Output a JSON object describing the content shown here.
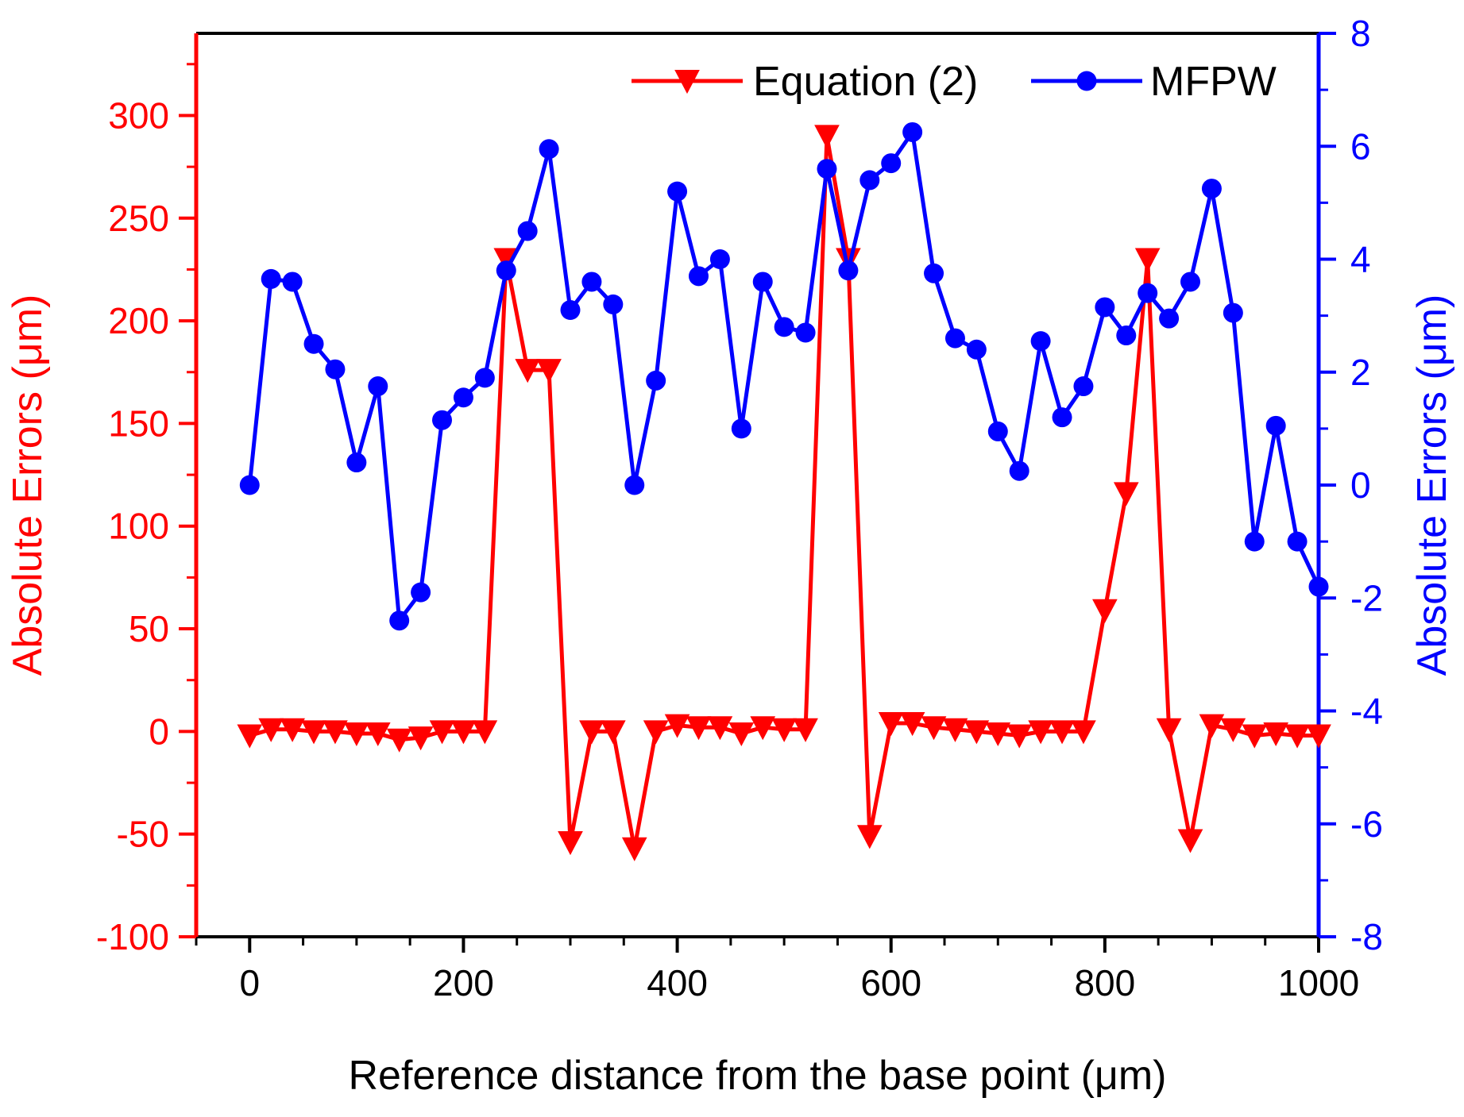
{
  "chart_data": {
    "type": "line",
    "title": "",
    "xlabel": "Reference distance from the base point (μm)",
    "ylabel_left": "Absolute Errors (μm)",
    "ylabel_right": "Absolute Errors (μm)",
    "xlim": [
      -50,
      1000
    ],
    "ylim_left": [
      -100,
      340
    ],
    "ylim_right": [
      -8,
      8
    ],
    "x_ticks": [
      0,
      200,
      400,
      600,
      800,
      1000
    ],
    "x_tick_labels": [
      "0",
      "200",
      "400",
      "600",
      "800",
      "1000"
    ],
    "y_left_ticks": [
      -100,
      -50,
      0,
      50,
      100,
      150,
      200,
      250,
      300
    ],
    "y_left_tick_labels": [
      "-100",
      "-50",
      "0",
      "50",
      "100",
      "150",
      "200",
      "250",
      "300"
    ],
    "y_right_ticks": [
      -8,
      -6,
      -4,
      -2,
      0,
      2,
      4,
      6,
      8
    ],
    "y_right_tick_labels": [
      "-8",
      "-6",
      "-4",
      "-2",
      "0",
      "2",
      "4",
      "6",
      "8"
    ],
    "grid": false,
    "legend_position": "top-right",
    "colors": {
      "left_axis": "#ff0000",
      "right_axis": "#0000ff",
      "frame": "#000000"
    },
    "series": [
      {
        "name": "Equation (2)",
        "axis": "left",
        "color": "#ff0000",
        "marker": "triangle-down",
        "x": [
          0,
          20,
          40,
          60,
          80,
          100,
          120,
          140,
          160,
          180,
          200,
          220,
          240,
          260,
          280,
          300,
          320,
          340,
          360,
          380,
          400,
          420,
          440,
          460,
          480,
          500,
          520,
          540,
          560,
          580,
          600,
          620,
          640,
          660,
          680,
          700,
          720,
          740,
          760,
          780,
          800,
          820,
          840,
          860,
          880,
          900,
          920,
          940,
          960,
          980,
          1000
        ],
        "values": [
          -2,
          1,
          1,
          0,
          0,
          -1,
          -1,
          -4,
          -3,
          0,
          0,
          0,
          230,
          176,
          176,
          -54,
          0,
          0,
          -57,
          0,
          3,
          2,
          2,
          -1,
          2,
          1,
          1,
          290,
          230,
          -51,
          4,
          4,
          2,
          1,
          0,
          -1,
          -2,
          0,
          0,
          0,
          59,
          116,
          230,
          1,
          -53,
          3,
          1,
          -2,
          -1,
          -2,
          -2
        ]
      },
      {
        "name": "MFPW",
        "axis": "right",
        "color": "#0000ff",
        "marker": "circle",
        "x": [
          0,
          20,
          40,
          60,
          80,
          100,
          120,
          140,
          160,
          180,
          200,
          220,
          240,
          260,
          280,
          300,
          320,
          340,
          360,
          380,
          400,
          420,
          440,
          460,
          480,
          500,
          520,
          540,
          560,
          580,
          600,
          620,
          640,
          660,
          680,
          700,
          720,
          740,
          760,
          780,
          800,
          820,
          840,
          860,
          880,
          900,
          920,
          940,
          960,
          980,
          1000
        ],
        "values": [
          0,
          3.65,
          3.6,
          2.5,
          2.05,
          0.4,
          1.75,
          -2.4,
          -1.9,
          1.15,
          1.55,
          1.9,
          3.8,
          4.5,
          5.95,
          3.1,
          3.6,
          3.2,
          0,
          1.85,
          5.2,
          3.7,
          4.0,
          1.0,
          3.6,
          2.8,
          2.7,
          5.6,
          3.8,
          5.4,
          5.7,
          6.25,
          3.75,
          2.6,
          2.4,
          0.95,
          0.25,
          2.55,
          1.2,
          1.75,
          3.15,
          2.65,
          3.4,
          2.95,
          3.6,
          5.25,
          3.05,
          -1.0,
          1.05,
          -1.0,
          -1.8
        ]
      }
    ]
  }
}
